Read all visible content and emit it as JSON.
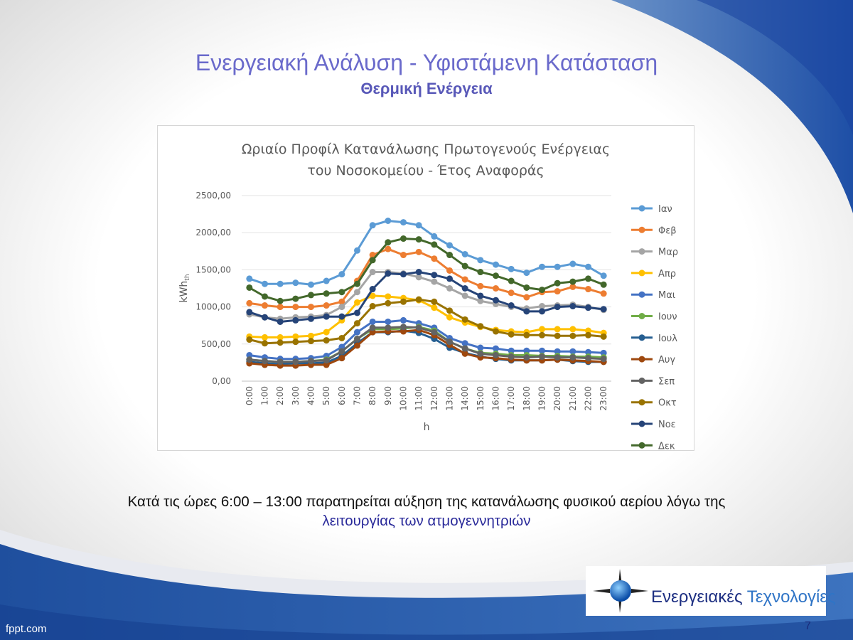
{
  "slide": {
    "title": "Ενεργειακή Ανάλυση - Υφιστάμενη Κατάσταση",
    "subtitle": "Θερμική Ενέργεια",
    "caption_line1": "Κατά τις ώρες 6:00 – 13:00 παρατηρείται αύξηση της κατανάλωσης φυσικού αερίου λόγω της",
    "caption_line2": "λειτουργίας των ατμογεννητριών",
    "logo_word1": "Ενεργειακές",
    "logo_word2": "Τεχνολογίες",
    "page_number": "7",
    "watermark": "fppt.com"
  },
  "chart_data": {
    "type": "line",
    "title_line1": "Ωριαίο Προφίλ Κατανάλωσης Πρωτογενούς Ενέργειας",
    "title_line2": "του Νοσοκομείου - Έτος Αναφοράς",
    "xlabel": "h",
    "ylabel": "kWh",
    "ylabel_sub": "th",
    "ylim": [
      0,
      2500
    ],
    "yticks": [
      0,
      500,
      1000,
      1500,
      2000,
      2500
    ],
    "ytick_labels": [
      "0,00",
      "500,00",
      "1000,00",
      "1500,00",
      "2000,00",
      "2500,00"
    ],
    "grid": true,
    "legend_position": "right",
    "categories": [
      "0:00",
      "1:00",
      "2:00",
      "3:00",
      "4:00",
      "5:00",
      "6:00",
      "7:00",
      "8:00",
      "9:00",
      "10:00",
      "11:00",
      "12:00",
      "13:00",
      "14:00",
      "15:00",
      "16:00",
      "17:00",
      "18:00",
      "19:00",
      "20:00",
      "21:00",
      "22:00",
      "23:00"
    ],
    "series": [
      {
        "name": "Ιαν",
        "color": "#5b9bd5",
        "values": [
          1380,
          1310,
          1310,
          1325,
          1300,
          1350,
          1440,
          1760,
          2100,
          2160,
          2140,
          2100,
          1950,
          1830,
          1710,
          1630,
          1570,
          1510,
          1460,
          1540,
          1540,
          1580,
          1540,
          1420
        ]
      },
      {
        "name": "Φεβ",
        "color": "#ed7d31",
        "values": [
          1050,
          1020,
          1000,
          1000,
          1000,
          1020,
          1070,
          1350,
          1700,
          1780,
          1700,
          1740,
          1650,
          1490,
          1370,
          1280,
          1250,
          1190,
          1130,
          1200,
          1210,
          1270,
          1240,
          1180
        ]
      },
      {
        "name": "Μαρ",
        "color": "#a5a5a5",
        "values": [
          900,
          860,
          840,
          860,
          870,
          890,
          1000,
          1200,
          1470,
          1470,
          1450,
          1400,
          1340,
          1250,
          1150,
          1080,
          1040,
          1000,
          980,
          1010,
          1020,
          1030,
          1000,
          960
        ]
      },
      {
        "name": "Απρ",
        "color": "#ffc000",
        "values": [
          600,
          590,
          590,
          600,
          610,
          660,
          820,
          1060,
          1150,
          1140,
          1120,
          1090,
          990,
          860,
          790,
          730,
          690,
          670,
          660,
          700,
          700,
          700,
          680,
          650
        ]
      },
      {
        "name": "Μαι",
        "color": "#4472c4",
        "values": [
          350,
          320,
          300,
          300,
          310,
          340,
          460,
          660,
          800,
          800,
          820,
          780,
          720,
          580,
          510,
          450,
          440,
          410,
          410,
          410,
          400,
          400,
          390,
          380
        ]
      },
      {
        "name": "Ιουν",
        "color": "#70ad47",
        "values": [
          290,
          270,
          260,
          260,
          270,
          290,
          400,
          570,
          700,
          700,
          710,
          730,
          680,
          530,
          440,
          380,
          370,
          350,
          350,
          340,
          340,
          330,
          330,
          320
        ]
      },
      {
        "name": "Ιουλ",
        "color": "#255e91",
        "values": [
          260,
          240,
          230,
          240,
          240,
          250,
          340,
          510,
          660,
          660,
          680,
          650,
          570,
          450,
          380,
          330,
          300,
          280,
          280,
          280,
          290,
          270,
          260,
          260
        ]
      },
      {
        "name": "Αυγ",
        "color": "#9e480e",
        "values": [
          240,
          220,
          210,
          210,
          220,
          220,
          310,
          480,
          660,
          670,
          670,
          690,
          620,
          490,
          370,
          320,
          310,
          290,
          280,
          280,
          290,
          280,
          270,
          260
        ]
      },
      {
        "name": "Σεπ",
        "color": "#636363",
        "values": [
          290,
          270,
          260,
          260,
          270,
          280,
          400,
          570,
          720,
          720,
          730,
          720,
          660,
          530,
          440,
          370,
          350,
          330,
          320,
          330,
          320,
          320,
          310,
          300
        ]
      },
      {
        "name": "Οκτ",
        "color": "#997300",
        "values": [
          560,
          510,
          520,
          530,
          540,
          550,
          580,
          780,
          1010,
          1050,
          1070,
          1100,
          1070,
          950,
          830,
          740,
          670,
          630,
          620,
          620,
          610,
          610,
          620,
          600
        ]
      },
      {
        "name": "Νοε",
        "color": "#264478",
        "values": [
          930,
          860,
          800,
          820,
          840,
          870,
          870,
          920,
          1240,
          1450,
          1440,
          1470,
          1430,
          1380,
          1250,
          1150,
          1090,
          1020,
          940,
          940,
          1000,
          1010,
          990,
          970
        ]
      },
      {
        "name": "Δεκ",
        "color": "#43682b",
        "values": [
          1260,
          1140,
          1080,
          1110,
          1160,
          1180,
          1200,
          1310,
          1630,
          1870,
          1920,
          1910,
          1840,
          1700,
          1550,
          1470,
          1420,
          1350,
          1260,
          1230,
          1320,
          1340,
          1380,
          1300
        ]
      }
    ]
  }
}
